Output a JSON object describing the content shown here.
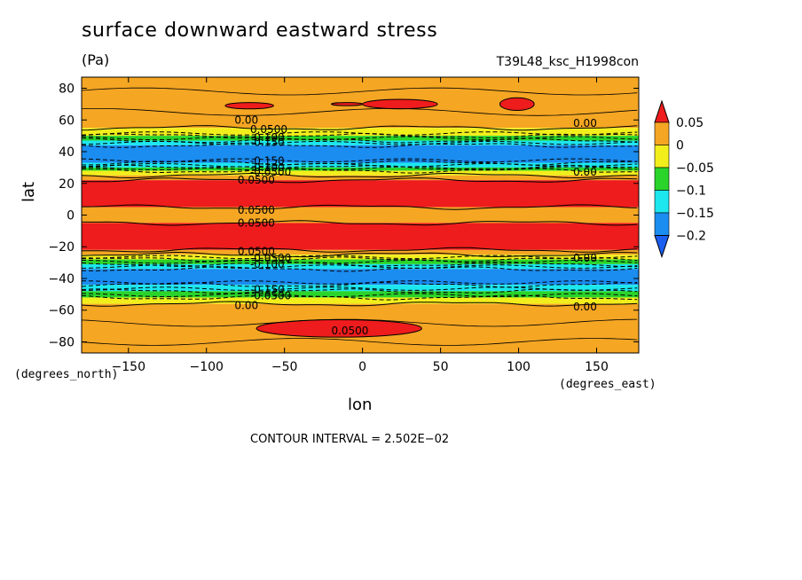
{
  "chart_data": {
    "type": "heatmap",
    "title": "surface downward eastward stress",
    "units": "(Pa)",
    "run_label": "T39L48_ksc_H1998con",
    "xlabel": "lon",
    "ylabel": "lat",
    "x_unit": "(degrees_east)",
    "y_unit": "(degrees_north)",
    "xlim": [
      -180,
      177
    ],
    "ylim": [
      -87,
      87
    ],
    "x_ticks": [
      -150,
      -100,
      -50,
      0,
      50,
      100,
      150
    ],
    "y_ticks": [
      80,
      60,
      40,
      20,
      0,
      -20,
      -40,
      -60,
      -80
    ],
    "x_tick_labels": [
      "−150",
      "−100",
      "−50",
      "0",
      "50",
      "100",
      "150"
    ],
    "y_tick_labels": [
      "80",
      "60",
      "40",
      "20",
      "0",
      "−20",
      "−40",
      "−60",
      "−80"
    ],
    "contour_interval": "CONTOUR INTERVAL = 2.502E−02",
    "colorbar": {
      "levels": [
        0.05,
        0,
        -0.05,
        -0.1,
        -0.15,
        -0.2
      ],
      "labels": [
        "0.05",
        "0",
        "−0.05",
        "−0.1",
        "−0.15",
        "−0.2"
      ],
      "colors": [
        "#ee1c1c",
        "#f5a623",
        "#f2ee1c",
        "#2ad42a",
        "#1ce6ee",
        "#1b8cf0",
        "#1b5ef0"
      ]
    },
    "bands": [
      {
        "lat_top": 87,
        "lat_bottom": 55,
        "color": "#f5a623"
      },
      {
        "lat_top": 55,
        "lat_bottom": 50,
        "color": "#f2ee1c"
      },
      {
        "lat_top": 50,
        "lat_bottom": 47,
        "color": "#2ad42a"
      },
      {
        "lat_top": 47,
        "lat_bottom": 44,
        "color": "#1ce6ee"
      },
      {
        "lat_top": 44,
        "lat_bottom": 33,
        "color": "#1b8cf0"
      },
      {
        "lat_top": 33,
        "lat_bottom": 30,
        "color": "#1ce6ee"
      },
      {
        "lat_top": 30,
        "lat_bottom": 28,
        "color": "#2ad42a"
      },
      {
        "lat_top": 28,
        "lat_bottom": 25,
        "color": "#f2ee1c"
      },
      {
        "lat_top": 25,
        "lat_bottom": 22,
        "color": "#f5a623"
      },
      {
        "lat_top": 22,
        "lat_bottom": 5,
        "color": "#ee1c1c"
      },
      {
        "lat_top": 5,
        "lat_bottom": -5,
        "color": "#f5a623"
      },
      {
        "lat_top": -5,
        "lat_bottom": -22,
        "color": "#ee1c1c"
      },
      {
        "lat_top": -22,
        "lat_bottom": -25,
        "color": "#f5a623"
      },
      {
        "lat_top": -25,
        "lat_bottom": -28,
        "color": "#f2ee1c"
      },
      {
        "lat_top": -28,
        "lat_bottom": -31,
        "color": "#2ad42a"
      },
      {
        "lat_top": -31,
        "lat_bottom": -34,
        "color": "#1ce6ee"
      },
      {
        "lat_top": -34,
        "lat_bottom": -44,
        "color": "#1b8cf0"
      },
      {
        "lat_top": -44,
        "lat_bottom": -48,
        "color": "#1ce6ee"
      },
      {
        "lat_top": -48,
        "lat_bottom": -52,
        "color": "#2ad42a"
      },
      {
        "lat_top": -52,
        "lat_bottom": -56,
        "color": "#f2ee1c"
      },
      {
        "lat_top": -56,
        "lat_bottom": -87,
        "color": "#f5a623"
      }
    ],
    "patches": [
      {
        "lon_min": -88,
        "lon_max": -57,
        "lat_min": 67,
        "lat_max": 71,
        "color": "#ee1c1c"
      },
      {
        "lon_min": -20,
        "lon_max": 0,
        "lat_min": 69,
        "lat_max": 71,
        "color": "#ee1c1c"
      },
      {
        "lon_min": 0,
        "lon_max": 48,
        "lat_min": 67,
        "lat_max": 73,
        "color": "#ee1c1c"
      },
      {
        "lon_min": 88,
        "lon_max": 110,
        "lat_min": 66,
        "lat_max": 74,
        "color": "#ee1c1c"
      },
      {
        "lon_min": -68,
        "lon_max": 38,
        "lat_min": -77,
        "lat_max": -66,
        "color": "#ee1c1c"
      }
    ],
    "contour_labels": [
      {
        "lon": -82,
        "lat": 60,
        "text": "0.00"
      },
      {
        "lon": -72,
        "lat": 54,
        "text": "0.0500"
      },
      {
        "lon": -72,
        "lat": 49,
        "text": "-0.100"
      },
      {
        "lon": -72,
        "lat": 46,
        "text": "-0.150"
      },
      {
        "lon": -72,
        "lat": 34,
        "text": "-0.150"
      },
      {
        "lon": -72,
        "lat": 30,
        "text": "-0.100"
      },
      {
        "lon": -72,
        "lat": 27,
        "text": "-0.0500"
      },
      {
        "lon": -80,
        "lat": 22,
        "text": "0.0500"
      },
      {
        "lon": -80,
        "lat": 3,
        "text": "0.0500"
      },
      {
        "lon": -80,
        "lat": -5,
        "text": "0.0500"
      },
      {
        "lon": -80,
        "lat": -23,
        "text": "0.0500"
      },
      {
        "lon": -72,
        "lat": -27,
        "text": "-0.0500"
      },
      {
        "lon": -72,
        "lat": -31,
        "text": "-0.100"
      },
      {
        "lon": -72,
        "lat": -47,
        "text": "-0.150"
      },
      {
        "lon": -72,
        "lat": -51,
        "text": "-0.0500"
      },
      {
        "lon": -82,
        "lat": -57,
        "text": "0.00"
      },
      {
        "lon": -20,
        "lat": -73,
        "text": "0.0500"
      },
      {
        "lon": 135,
        "lat": 58,
        "text": "0.00"
      },
      {
        "lon": 135,
        "lat": 27,
        "text": "0.00"
      },
      {
        "lon": 135,
        "lat": -27,
        "text": "0.00"
      },
      {
        "lon": 135,
        "lat": -58,
        "text": "0.00"
      }
    ]
  }
}
